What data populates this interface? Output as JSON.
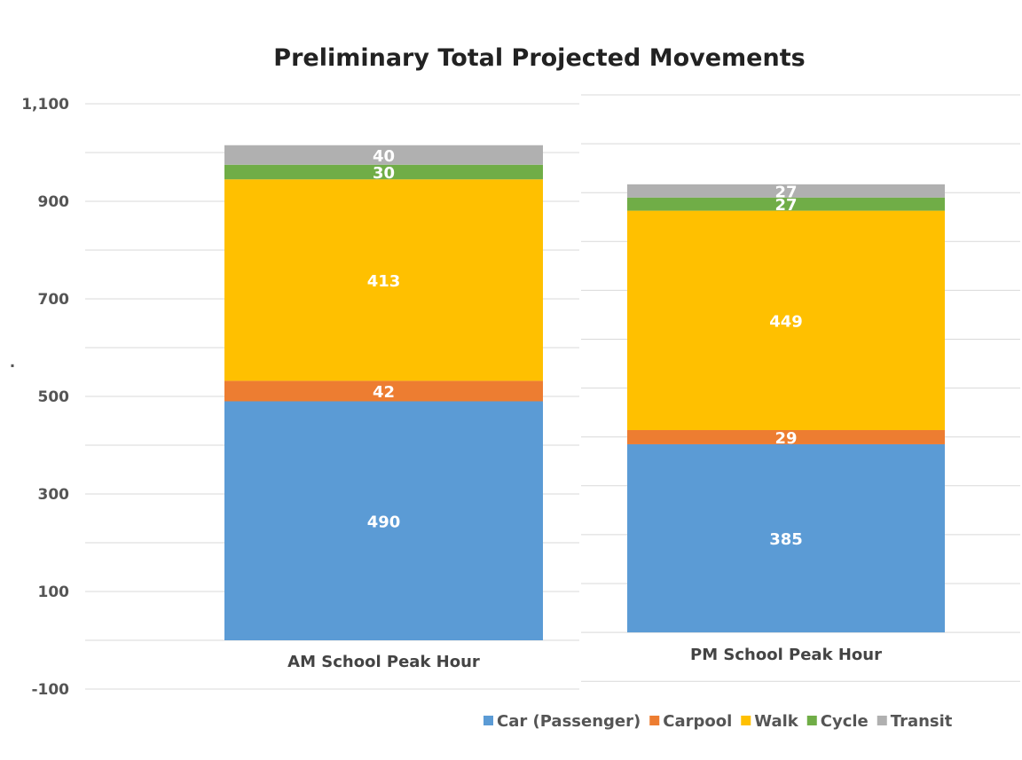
{
  "chart_data": {
    "type": "bar",
    "stacked": true,
    "title": "Preliminary Total Projected Movements",
    "ylabel": ".",
    "xlabel": "",
    "ylim": [
      -100,
      1100
    ],
    "yticks": [
      1100,
      900,
      700,
      500,
      300,
      100,
      -100
    ],
    "ytick_labels": [
      "1,100",
      "900",
      "700",
      "500",
      "300",
      "100",
      "-100"
    ],
    "grid": true,
    "legend": "bottom-right",
    "categories": [
      "AM School Peak Hour",
      "PM School Peak Hour"
    ],
    "series": [
      {
        "name": "Car (Passenger)",
        "color": "#5B9BD5",
        "values": [
          490,
          385
        ]
      },
      {
        "name": "Carpool",
        "color": "#ED7D31",
        "values": [
          42,
          29
        ]
      },
      {
        "name": "Walk",
        "color": "#FFC000",
        "values": [
          413,
          449
        ]
      },
      {
        "name": "Cycle",
        "color": "#70AD47",
        "values": [
          30,
          27
        ]
      },
      {
        "name": "Transit",
        "color": "#B0B0B0",
        "values": [
          40,
          27
        ]
      }
    ]
  }
}
